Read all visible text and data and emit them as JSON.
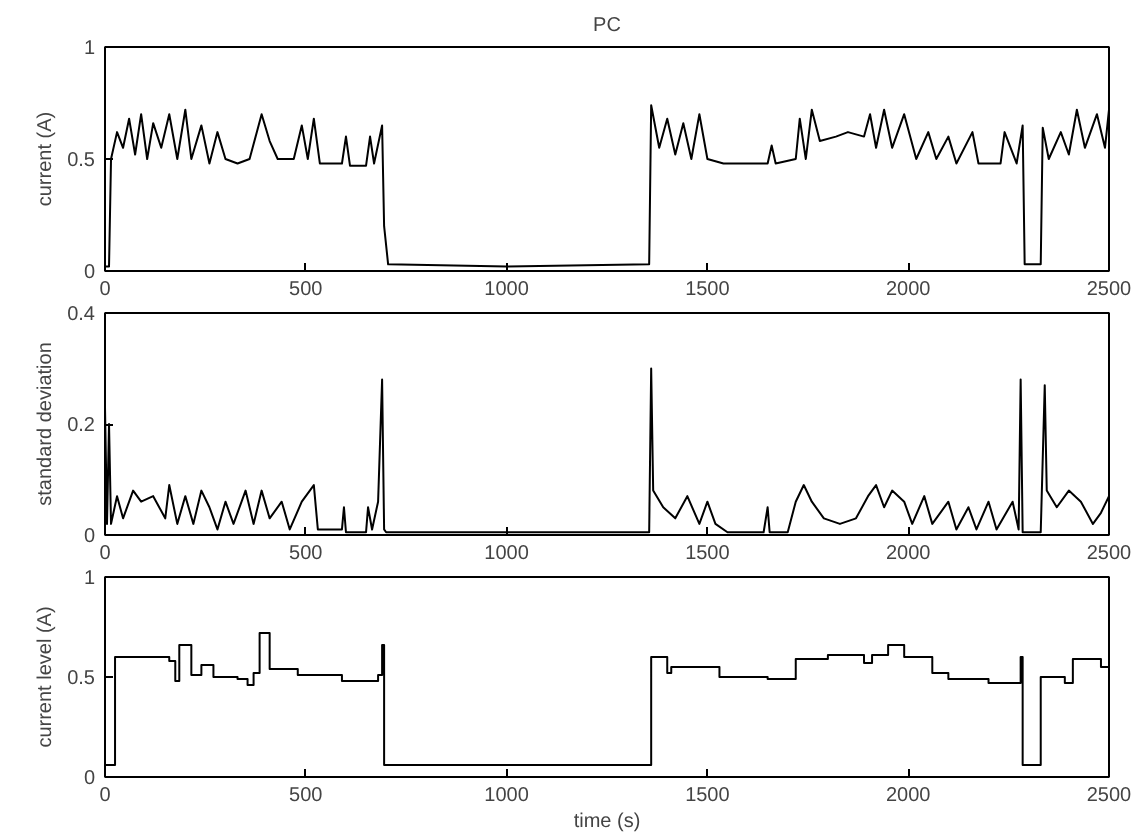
{
  "chart_data": [
    {
      "type": "line",
      "title": "PC",
      "ylabel": "current (A)",
      "xlim": [
        0,
        2500
      ],
      "xticks": [
        0,
        500,
        1000,
        1500,
        2000,
        2500
      ],
      "ylim": [
        0,
        1
      ],
      "yticks": [
        0,
        0.5,
        1
      ],
      "x": [
        0,
        10,
        15,
        30,
        45,
        60,
        75,
        90,
        105,
        120,
        140,
        160,
        180,
        200,
        215,
        240,
        260,
        280,
        300,
        330,
        360,
        390,
        410,
        430,
        470,
        490,
        505,
        520,
        535,
        590,
        600,
        610,
        650,
        660,
        670,
        690,
        695,
        705,
        1000,
        1355,
        1360,
        1380,
        1400,
        1420,
        1440,
        1460,
        1480,
        1500,
        1540,
        1650,
        1660,
        1670,
        1720,
        1730,
        1745,
        1760,
        1780,
        1820,
        1850,
        1890,
        1905,
        1920,
        1940,
        1960,
        1990,
        2020,
        2050,
        2070,
        2100,
        2120,
        2160,
        2175,
        2230,
        2240,
        2270,
        2285,
        2290,
        2330,
        2335,
        2350,
        2380,
        2400,
        2420,
        2440,
        2470,
        2490,
        2500
      ],
      "series": [
        {
          "color": "#000000",
          "values": [
            0.02,
            0.02,
            0.5,
            0.62,
            0.55,
            0.68,
            0.52,
            0.7,
            0.5,
            0.66,
            0.55,
            0.7,
            0.5,
            0.72,
            0.5,
            0.65,
            0.48,
            0.62,
            0.5,
            0.48,
            0.5,
            0.7,
            0.58,
            0.5,
            0.5,
            0.65,
            0.5,
            0.68,
            0.48,
            0.48,
            0.6,
            0.47,
            0.47,
            0.6,
            0.48,
            0.65,
            0.2,
            0.03,
            0.02,
            0.03,
            0.74,
            0.55,
            0.68,
            0.52,
            0.66,
            0.5,
            0.7,
            0.5,
            0.48,
            0.48,
            0.56,
            0.48,
            0.5,
            0.68,
            0.5,
            0.72,
            0.58,
            0.6,
            0.62,
            0.6,
            0.7,
            0.55,
            0.72,
            0.55,
            0.7,
            0.5,
            0.62,
            0.5,
            0.6,
            0.48,
            0.62,
            0.48,
            0.48,
            0.62,
            0.48,
            0.65,
            0.03,
            0.03,
            0.64,
            0.5,
            0.62,
            0.52,
            0.72,
            0.55,
            0.7,
            0.55,
            0.72
          ]
        }
      ]
    },
    {
      "type": "line",
      "ylabel": "standard deviation",
      "xlim": [
        0,
        2500
      ],
      "xticks": [
        0,
        500,
        1000,
        1500,
        2000,
        2500
      ],
      "ylim": [
        0,
        0.4
      ],
      "yticks": [
        0,
        0.2,
        0.4
      ],
      "x": [
        0,
        5,
        10,
        15,
        30,
        45,
        70,
        90,
        120,
        150,
        160,
        180,
        200,
        220,
        240,
        260,
        280,
        300,
        320,
        350,
        370,
        390,
        410,
        440,
        460,
        490,
        520,
        530,
        590,
        595,
        600,
        650,
        655,
        665,
        680,
        690,
        695,
        700,
        1355,
        1360,
        1365,
        1390,
        1420,
        1450,
        1480,
        1500,
        1520,
        1550,
        1640,
        1650,
        1655,
        1700,
        1720,
        1740,
        1760,
        1790,
        1830,
        1870,
        1900,
        1920,
        1940,
        1960,
        1990,
        2010,
        2040,
        2060,
        2100,
        2120,
        2150,
        2170,
        2200,
        2220,
        2260,
        2275,
        2280,
        2285,
        2330,
        2340,
        2345,
        2370,
        2400,
        2430,
        2460,
        2480,
        2500
      ],
      "series": [
        {
          "color": "#000000",
          "values": [
            0.23,
            0.02,
            0.2,
            0.02,
            0.07,
            0.03,
            0.08,
            0.06,
            0.07,
            0.03,
            0.09,
            0.02,
            0.07,
            0.02,
            0.08,
            0.05,
            0.01,
            0.06,
            0.02,
            0.08,
            0.02,
            0.08,
            0.03,
            0.06,
            0.01,
            0.06,
            0.09,
            0.01,
            0.01,
            0.05,
            0.005,
            0.005,
            0.05,
            0.01,
            0.06,
            0.28,
            0.01,
            0.005,
            0.005,
            0.3,
            0.08,
            0.05,
            0.03,
            0.07,
            0.02,
            0.06,
            0.02,
            0.005,
            0.005,
            0.05,
            0.005,
            0.005,
            0.06,
            0.09,
            0.06,
            0.03,
            0.02,
            0.03,
            0.07,
            0.09,
            0.05,
            0.08,
            0.06,
            0.02,
            0.07,
            0.02,
            0.06,
            0.01,
            0.05,
            0.01,
            0.06,
            0.01,
            0.06,
            0.01,
            0.28,
            0.005,
            0.005,
            0.27,
            0.08,
            0.05,
            0.08,
            0.06,
            0.02,
            0.04,
            0.07
          ]
        }
      ]
    },
    {
      "type": "step",
      "ylabel": "current level (A)",
      "xlabel": "time (s)",
      "xlim": [
        0,
        2500
      ],
      "xticks": [
        0,
        500,
        1000,
        1500,
        2000,
        2500
      ],
      "ylim": [
        0,
        1
      ],
      "yticks": [
        0,
        0.5,
        1
      ],
      "x": [
        0,
        25,
        160,
        175,
        185,
        215,
        240,
        270,
        330,
        355,
        370,
        385,
        410,
        480,
        590,
        680,
        690,
        695,
        1360,
        1400,
        1410,
        1530,
        1650,
        1720,
        1800,
        1890,
        1910,
        1950,
        1990,
        2060,
        2100,
        2200,
        2280,
        2285,
        2330,
        2390,
        2410,
        2480,
        2500
      ],
      "series": [
        {
          "color": "#000000",
          "values": [
            0.06,
            0.6,
            0.58,
            0.48,
            0.66,
            0.51,
            0.56,
            0.5,
            0.49,
            0.46,
            0.52,
            0.72,
            0.54,
            0.51,
            0.48,
            0.51,
            0.66,
            0.06,
            0.6,
            0.52,
            0.55,
            0.5,
            0.49,
            0.59,
            0.61,
            0.57,
            0.61,
            0.66,
            0.6,
            0.52,
            0.49,
            0.47,
            0.6,
            0.06,
            0.5,
            0.47,
            0.59,
            0.55,
            0.5
          ]
        }
      ]
    }
  ]
}
